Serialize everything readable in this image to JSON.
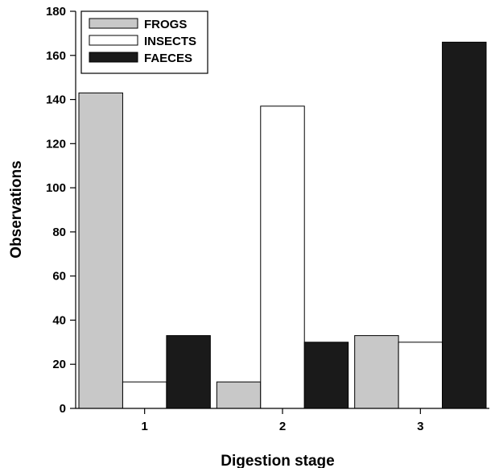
{
  "chart_data": {
    "type": "bar",
    "title": "",
    "xlabel": "Digestion stage",
    "ylabel": "Observations",
    "categories": [
      "1",
      "2",
      "3"
    ],
    "ylim": [
      0,
      180
    ],
    "yticks": [
      0,
      20,
      40,
      60,
      80,
      100,
      120,
      140,
      160,
      180
    ],
    "grid": false,
    "legend_position": "top-left",
    "series": [
      {
        "name": "FROGS",
        "color": "#c8c8c8",
        "values": [
          143,
          12,
          33
        ]
      },
      {
        "name": "INSECTS",
        "color": "#ffffff",
        "values": [
          12,
          137,
          30
        ]
      },
      {
        "name": "FAECES",
        "color": "#1a1a1a",
        "values": [
          33,
          30,
          166
        ]
      }
    ]
  }
}
